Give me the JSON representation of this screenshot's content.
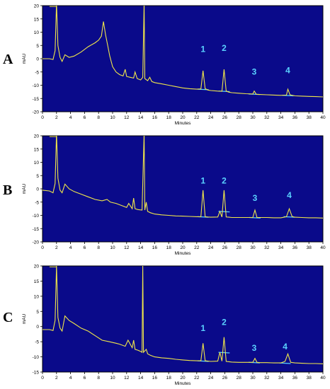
{
  "colors": {
    "plot_bg": "#0a0a8a",
    "trace": "#f0e64a",
    "baseline": "#5ad2ff",
    "peak_label": "#5ad2ff",
    "axis": "#000000",
    "grid_tick": "#000000"
  },
  "chart_data": [
    {
      "panel_label": "A",
      "type": "line",
      "xlabel": "Minutes",
      "ylabel": "mAU",
      "xlim": [
        0,
        40
      ],
      "ylim": [
        -20,
        20
      ],
      "xticks": [
        0,
        2,
        4,
        6,
        8,
        10,
        12,
        14,
        16,
        18,
        20,
        22,
        24,
        26,
        28,
        30,
        32,
        34,
        36,
        38,
        40
      ],
      "yticks": [
        20,
        15,
        10,
        5,
        0,
        -5,
        -10,
        -15,
        -20
      ],
      "peak_labels": [
        {
          "text": "1",
          "x": 22.9,
          "y": 2.6
        },
        {
          "text": "2",
          "x": 25.9,
          "y": 3.0
        },
        {
          "text": "3",
          "x": 30.2,
          "y": -6.0
        },
        {
          "text": "4",
          "x": 35.0,
          "y": -5.5
        }
      ],
      "series": [
        {
          "x": [
            0,
            1,
            1.5,
            1.8,
            2.0,
            2.2,
            2.5,
            2.8,
            3.2,
            3.8,
            4.5,
            5.5,
            6.5,
            7.5,
            8.0,
            8.4,
            8.7,
            9.0,
            9.3,
            9.6,
            10.0,
            10.5,
            11.0,
            11.5,
            11.8,
            12.0,
            12.5,
            13.0,
            13.2,
            13.5,
            14.0,
            14.3,
            14.5,
            14.6,
            15.0,
            15.3,
            15.6,
            16,
            17,
            18,
            19,
            20,
            21,
            22,
            22.6,
            22.9,
            23.2,
            23.6,
            24,
            25,
            25.6,
            25.9,
            26.2,
            26.6,
            27,
            28,
            29,
            30.0,
            30.2,
            30.5,
            31,
            32,
            33,
            34,
            34.8,
            35.0,
            35.3,
            35.8,
            36,
            37,
            38,
            39,
            40
          ],
          "y": [
            0,
            0,
            -0.3,
            3,
            21,
            5,
            0.5,
            -1,
            1.5,
            0.5,
            1,
            2.5,
            4.5,
            6,
            7,
            8.5,
            14,
            9,
            5,
            1,
            -3,
            -5,
            -6,
            -6.5,
            -4,
            -6.7,
            -7,
            -7.3,
            -5,
            -7.5,
            -8,
            -7,
            21,
            -7.5,
            -8.3,
            -7,
            -8.6,
            -9,
            -9.5,
            -10,
            -10.5,
            -11,
            -11.3,
            -11.5,
            -11.4,
            -4.5,
            -11.3,
            -11.8,
            -12,
            -12.2,
            -12.3,
            -4,
            -12.2,
            -12.6,
            -12.8,
            -13,
            -13.2,
            -13.3,
            -12.2,
            -13.4,
            -13.5,
            -13.6,
            -13.7,
            -13.8,
            -13.7,
            -11.5,
            -13.6,
            -13.9,
            -14.0,
            -14.1,
            -14.2,
            -14.3,
            -14.4
          ]
        }
      ]
    },
    {
      "panel_label": "B",
      "type": "line",
      "xlabel": "Minutes",
      "ylabel": "mAU",
      "xlim": [
        0,
        40
      ],
      "ylim": [
        -20,
        20
      ],
      "xticks": [
        0,
        2,
        4,
        6,
        8,
        10,
        12,
        14,
        16,
        18,
        20,
        22,
        24,
        26,
        28,
        30,
        32,
        34,
        36,
        38,
        40
      ],
      "yticks": [
        20,
        15,
        10,
        5,
        0,
        -5,
        -10,
        -15,
        -20
      ],
      "peak_labels": [
        {
          "text": "1",
          "x": 22.9,
          "y": 2.0
        },
        {
          "text": "2",
          "x": 25.9,
          "y": 2.0
        },
        {
          "text": "3",
          "x": 30.3,
          "y": -4.5
        },
        {
          "text": "4",
          "x": 35.2,
          "y": -3.5
        }
      ],
      "series": [
        {
          "x": [
            0,
            1,
            1.5,
            1.8,
            2.0,
            2.2,
            2.5,
            2.8,
            3.2,
            3.8,
            4.5,
            5.5,
            6.5,
            7.5,
            8.5,
            9.2,
            9.7,
            10.5,
            11.5,
            12.0,
            12.3,
            12.8,
            13.0,
            13.2,
            13.6,
            14.2,
            14.5,
            14.6,
            14.8,
            15.0,
            15.4,
            16,
            17,
            18,
            19,
            20,
            21,
            22,
            22.6,
            22.9,
            23.2,
            23.6,
            24,
            25,
            25.3,
            25.6,
            25.9,
            26.2,
            26.6,
            27,
            28,
            29,
            30.0,
            30.3,
            30.6,
            31,
            32,
            33,
            34,
            34.8,
            35.2,
            35.6,
            36,
            37,
            38,
            39,
            40
          ],
          "y": [
            -0.5,
            -0.8,
            -1.5,
            2,
            21,
            4,
            -0.5,
            -1.5,
            1.8,
            0,
            -1,
            -2,
            -3,
            -4,
            -4.5,
            -4,
            -5,
            -5.5,
            -6.5,
            -7,
            -5.5,
            -7.5,
            -3.5,
            -7.5,
            -7.8,
            -8,
            21,
            -8,
            -5,
            -8.5,
            -9,
            -9.5,
            -9.8,
            -10,
            -10.2,
            -10.3,
            -10.4,
            -10.5,
            -10.5,
            -0.5,
            -10.5,
            -10.6,
            -10.7,
            -10.6,
            -8.5,
            -10.6,
            -0.5,
            -10.6,
            -10.7,
            -10.8,
            -10.8,
            -10.8,
            -10.8,
            -8,
            -10.8,
            -10.8,
            -10.8,
            -10.9,
            -10.9,
            -10.5,
            -7.5,
            -10.4,
            -10.7,
            -10.8,
            -10.9,
            -10.9,
            -11.0
          ]
        }
      ]
    },
    {
      "panel_label": "C",
      "type": "line",
      "xlabel": "Minutes",
      "ylabel": "mAU",
      "xlim": [
        0,
        40
      ],
      "ylim": [
        -15,
        20
      ],
      "xticks": [
        0,
        2,
        4,
        6,
        8,
        10,
        12,
        14,
        16,
        18,
        20,
        22,
        24,
        26,
        28,
        30,
        32,
        34,
        36,
        38,
        40
      ],
      "yticks": [
        20,
        15,
        10,
        5,
        0,
        -5,
        -10,
        -15
      ],
      "peak_labels": [
        {
          "text": "1",
          "x": 22.9,
          "y": -1.5
        },
        {
          "text": "2",
          "x": 25.9,
          "y": 0.5
        },
        {
          "text": "3",
          "x": 30.2,
          "y": -8.0
        },
        {
          "text": "4",
          "x": 34.6,
          "y": -7.5
        }
      ],
      "series": [
        {
          "x": [
            0,
            1,
            1.5,
            1.8,
            2.0,
            2.2,
            2.5,
            2.8,
            3.2,
            3.8,
            4.5,
            5.5,
            6.5,
            7.5,
            8.5,
            9.5,
            10.5,
            11.0,
            11.8,
            12.2,
            12.8,
            13.0,
            13.2,
            13.6,
            14.0,
            14.2,
            14.3,
            14.4,
            14.8,
            15.0,
            15.4,
            16,
            17,
            18,
            19,
            20,
            21,
            22,
            22.6,
            22.9,
            23.2,
            23.6,
            24,
            25,
            25.3,
            25.6,
            25.9,
            26.2,
            26.6,
            27,
            28,
            29,
            30.0,
            30.3,
            30.6,
            31,
            32,
            33,
            34,
            34.6,
            35.0,
            35.4,
            36,
            37,
            38,
            39,
            40
          ],
          "y": [
            -1,
            -1,
            -1.3,
            2,
            20,
            3,
            -0.5,
            -1.5,
            3.5,
            2,
            1,
            -0.5,
            -1.5,
            -3,
            -4.5,
            -5,
            -5.5,
            -5.8,
            -6.5,
            -4.5,
            -7,
            -4.5,
            -7.5,
            -7.8,
            -8.2,
            -8.5,
            20,
            -8.5,
            -7.5,
            -9,
            -9.5,
            -10,
            -10.3,
            -10.5,
            -10.8,
            -11,
            -11.2,
            -11.3,
            -11.3,
            -5.5,
            -11.3,
            -11.4,
            -11.5,
            -11.4,
            -8.5,
            -11.4,
            -3.5,
            -11.5,
            -11.6,
            -11.7,
            -11.8,
            -11.8,
            -11.8,
            -10.5,
            -11.8,
            -11.9,
            -11.9,
            -12.0,
            -12.0,
            -11.5,
            -9.0,
            -11.8,
            -12.0,
            -12.1,
            -12.2,
            -12.2,
            -12.3
          ]
        }
      ]
    }
  ]
}
